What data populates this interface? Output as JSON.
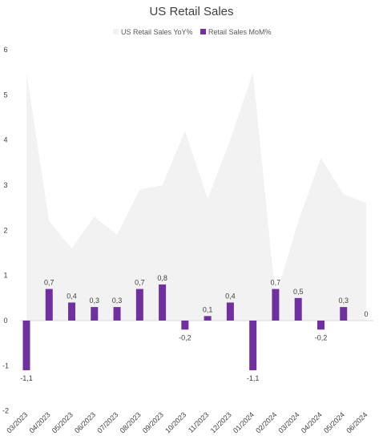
{
  "colors": {
    "yoy_area": "#f2f2f2",
    "mom_bar": "#7030a0",
    "text": "#404040",
    "background": "#ffffff"
  },
  "chart_data": {
    "type": "bar",
    "title": "US Retail Sales",
    "legend_position": "top",
    "grid": false,
    "ylim": [
      -2,
      6
    ],
    "y_ticks": [
      "-2",
      "-1",
      "0",
      "1",
      "2",
      "3",
      "4",
      "5",
      "6"
    ],
    "categories": [
      "03/2023",
      "04/2023",
      "05/2023",
      "06/2023",
      "07/2023",
      "08/2023",
      "09/2023",
      "10/2023",
      "11/2023",
      "12/2023",
      "01/2024",
      "02/2024",
      "03/2024",
      "04/2024",
      "05/2024",
      "06/2024"
    ],
    "series": [
      {
        "name": "US Retail Sales YoY%",
        "chart_type": "area",
        "values": [
          5.5,
          2.2,
          1.6,
          2.3,
          1.9,
          2.9,
          3.0,
          4.2,
          2.7,
          4.0,
          5.5,
          0.5,
          2.2,
          3.6,
          2.8,
          2.6
        ]
      },
      {
        "name": "Retail Sales MoM%",
        "chart_type": "bar",
        "values": [
          -1.1,
          0.7,
          0.4,
          0.3,
          0.3,
          0.7,
          0.8,
          -0.2,
          0.1,
          0.4,
          -1.1,
          0.7,
          0.5,
          -0.2,
          0.3,
          0
        ],
        "data_labels": [
          "-1,1",
          "0,7",
          "0,4",
          "0,3",
          "0,3",
          "0,7",
          "0,8",
          "-0,2",
          "0,1",
          "0,4",
          "-1,1",
          "0,7",
          "0,5",
          "-0,2",
          "0,3",
          "0"
        ]
      }
    ]
  }
}
